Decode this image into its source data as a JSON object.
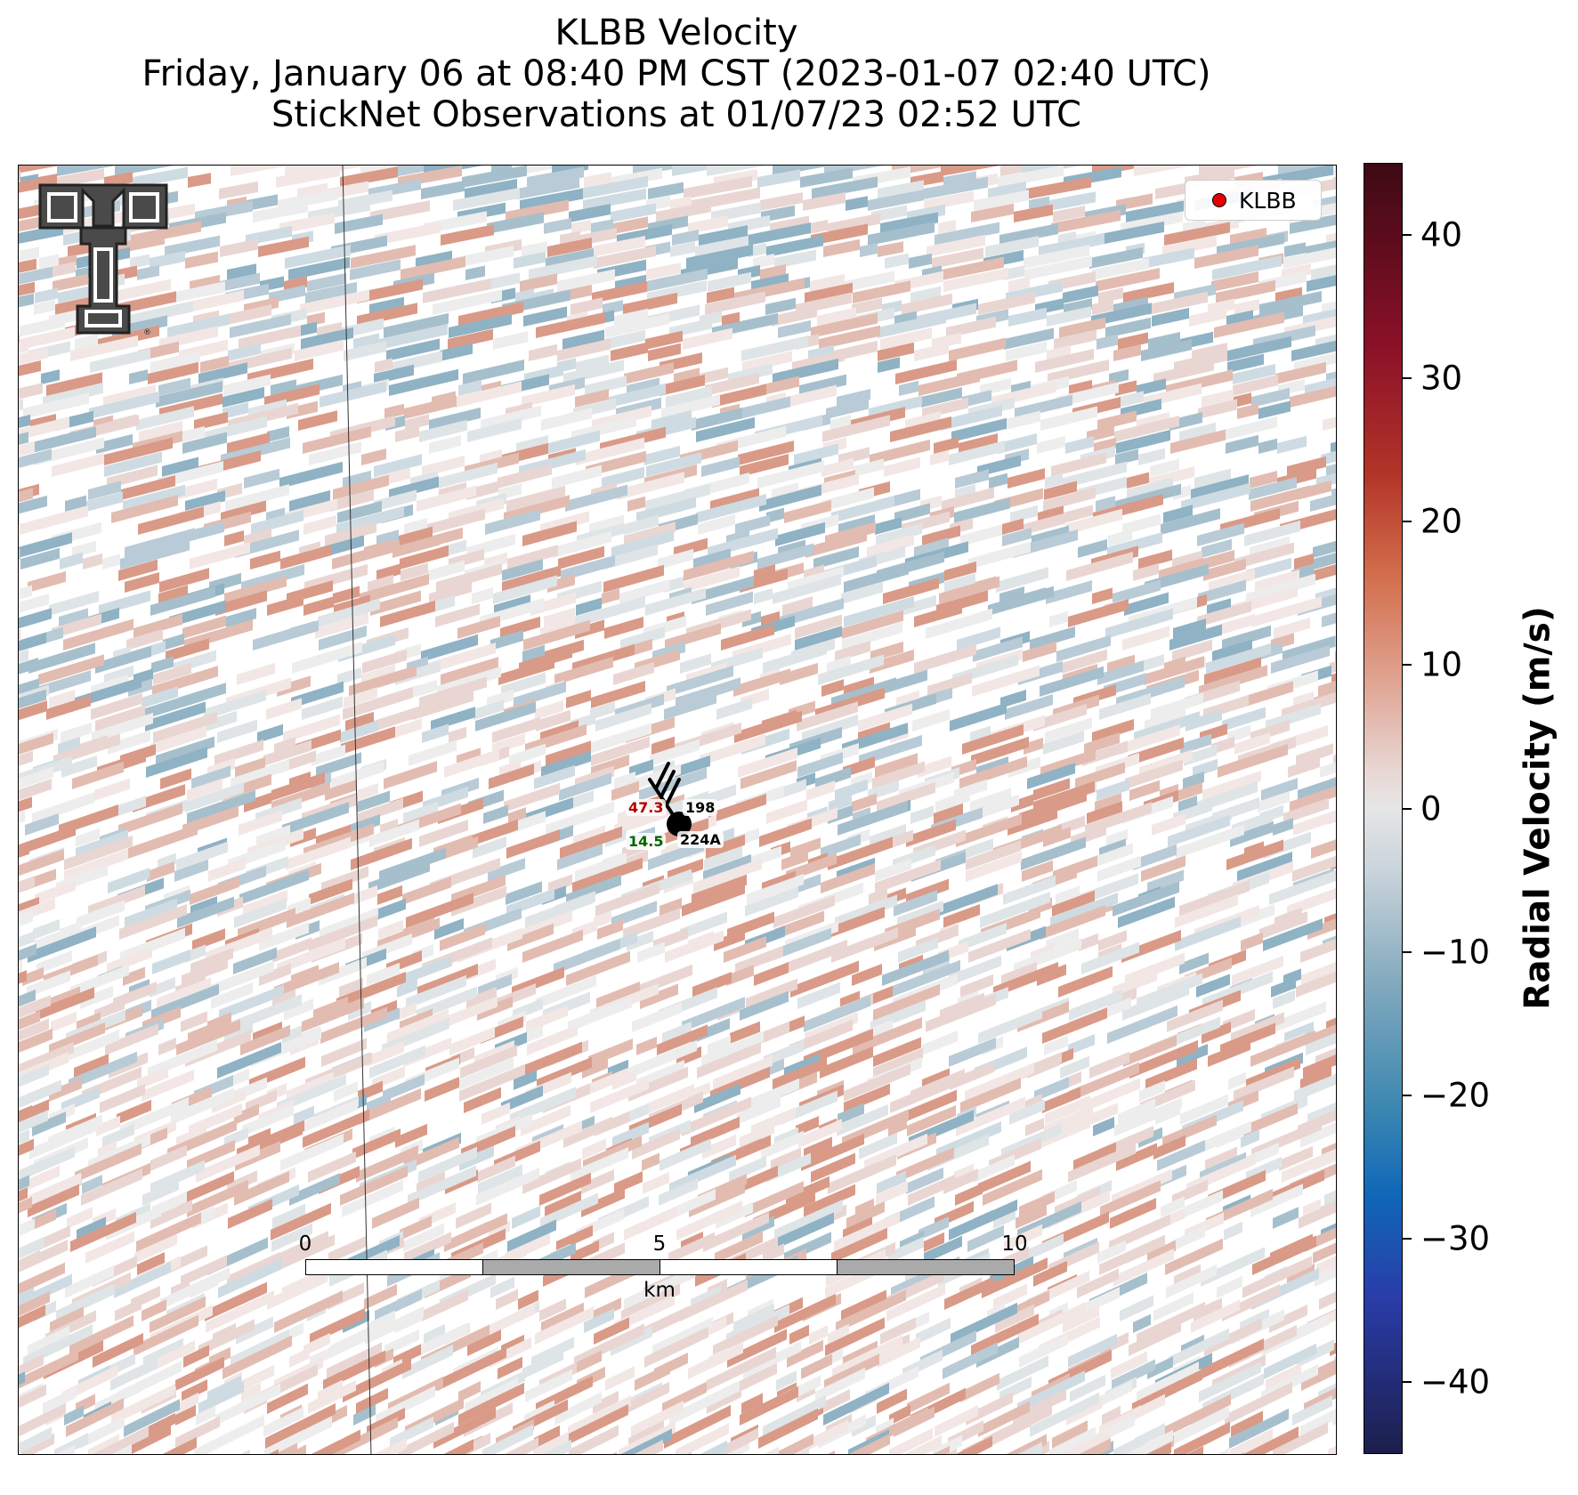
{
  "title": {
    "line1": "KLBB Velocity",
    "line2": "Friday, January 06 at 08:40 PM CST (2023-01-07 02:40 UTC)",
    "line3": "StickNet Observations at 01/07/23 02:52 UTC"
  },
  "legend": {
    "label": "KLBB",
    "marker_color": "#e30000"
  },
  "station": {
    "temperature": "47.3",
    "dewpoint": "14.5",
    "pressure": "198",
    "id": "224A",
    "temperature_color": "#b30000",
    "dewpoint_color": "#006400"
  },
  "scale_bar": {
    "ticks": [
      "0",
      "5",
      "10"
    ],
    "unit": "km"
  },
  "colorbar": {
    "label": "Radial Velocity (m/s)",
    "range": [
      -45,
      45
    ],
    "ticks": [
      "40",
      "30",
      "20",
      "10",
      "0",
      "−10",
      "−20",
      "−30",
      "−40"
    ],
    "tick_values": [
      40,
      30,
      20,
      10,
      0,
      -10,
      -20,
      -30,
      -40
    ],
    "colors": [
      "#3c0a14",
      "#8a1028",
      "#b23428",
      "#d36e4c",
      "#dfa391",
      "#e6e6e6",
      "#7fa7bd",
      "#3d88b0",
      "#0f67b8",
      "#2a3ca8",
      "#1c1f4c"
    ]
  },
  "icons": {
    "logo": "double-t-logo-icon",
    "station_marker": "station-circle-icon",
    "wind_barb": "wind-barb-icon"
  }
}
